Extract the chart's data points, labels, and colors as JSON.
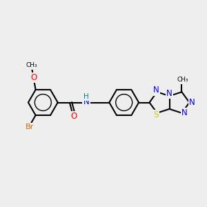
{
  "background_color": "#eeeeee",
  "bond_color": "#000000",
  "atom_colors": {
    "Br": "#cc6600",
    "O": "#ff0000",
    "N": "#0000ee",
    "S": "#cccc00",
    "H": "#008080",
    "C": "#000000"
  },
  "figsize": [
    3.0,
    3.0
  ],
  "dpi": 100,
  "BL": 0.72
}
